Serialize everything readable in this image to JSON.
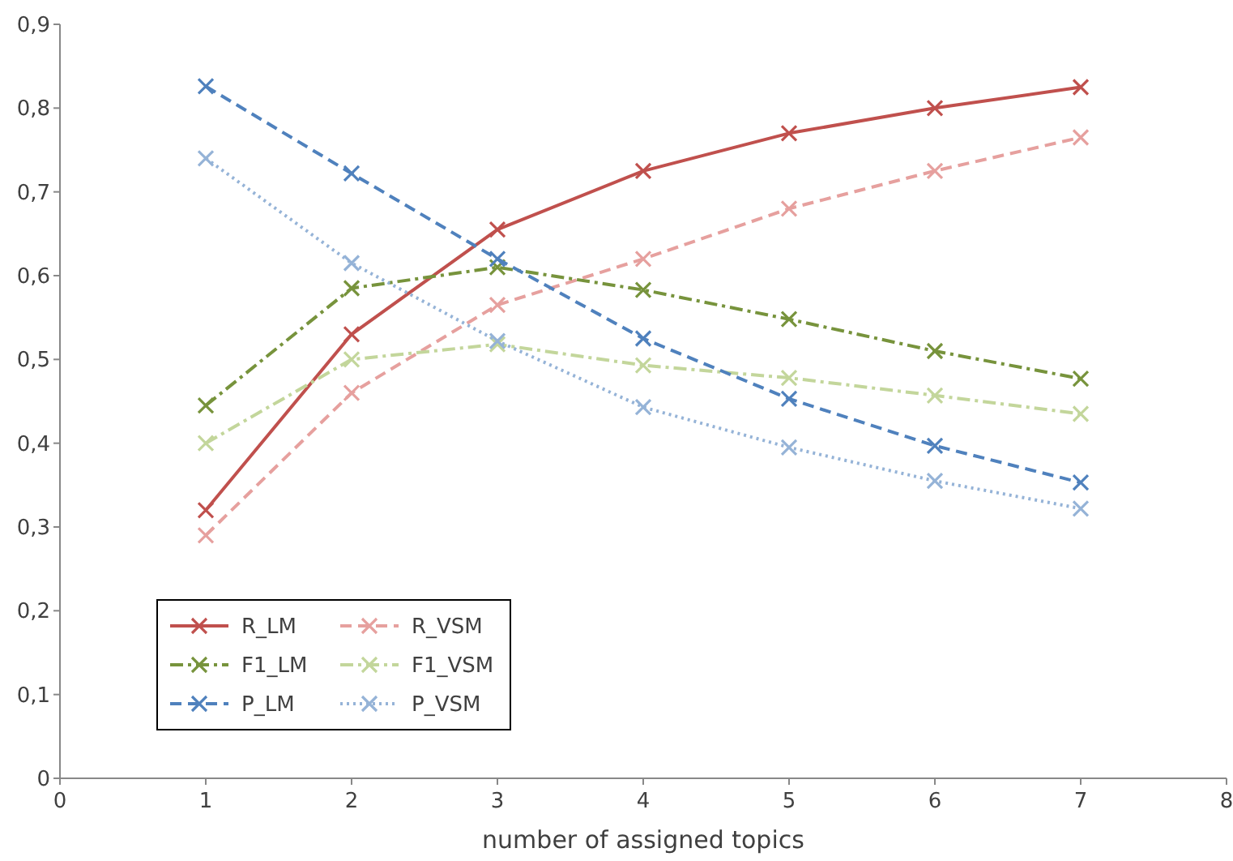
{
  "chart_data": {
    "type": "line",
    "xlabel": "number of assigned topics",
    "x": [
      1,
      2,
      3,
      4,
      5,
      6,
      7
    ],
    "xlim": [
      0,
      8
    ],
    "xticks": [
      0,
      1,
      2,
      3,
      4,
      5,
      6,
      7,
      8
    ],
    "ylim": [
      0,
      0.9
    ],
    "yticks": [
      0,
      {
        "value": 0.1,
        "label": "0,1"
      },
      {
        "value": 0.2,
        "label": "0,2"
      },
      {
        "value": 0.3,
        "label": "0,3"
      },
      {
        "value": 0.4,
        "label": "0,4"
      },
      {
        "value": 0.5,
        "label": "0,5"
      },
      {
        "value": 0.6,
        "label": "0,6"
      },
      {
        "value": 0.7,
        "label": "0,7"
      },
      {
        "value": 0.8,
        "label": "0,8"
      },
      {
        "value": 0.9,
        "label": "0,9"
      }
    ],
    "grid": false,
    "legend": "bottom left",
    "marker": "cross",
    "series": [
      {
        "name": "R_LM",
        "color": "#c0504d",
        "line_style": "solid",
        "values": [
          0.32,
          0.53,
          0.655,
          0.725,
          0.77,
          0.8,
          0.825
        ]
      },
      {
        "name": "R_VSM",
        "color": "#e6a09e",
        "line_style": "dashed",
        "values": [
          0.29,
          0.46,
          0.565,
          0.62,
          0.68,
          0.725,
          0.765
        ]
      },
      {
        "name": "F1_LM",
        "color": "#77933c",
        "line_style": "dashdot",
        "values": [
          0.445,
          0.585,
          0.61,
          0.583,
          0.548,
          0.51,
          0.477
        ]
      },
      {
        "name": "F1_VSM",
        "color": "#c3d69b",
        "line_style": "dashdot",
        "values": [
          0.4,
          0.5,
          0.518,
          0.493,
          0.478,
          0.457,
          0.435
        ]
      },
      {
        "name": "P_LM",
        "color": "#4f81bd",
        "line_style": "dashed",
        "values": [
          0.826,
          0.722,
          0.62,
          0.525,
          0.453,
          0.397,
          0.353
        ]
      },
      {
        "name": "P_VSM",
        "color": "#95b3d7",
        "line_style": "dotted",
        "values": [
          0.74,
          0.615,
          0.522,
          0.443,
          0.395,
          0.355,
          0.322
        ]
      }
    ]
  }
}
